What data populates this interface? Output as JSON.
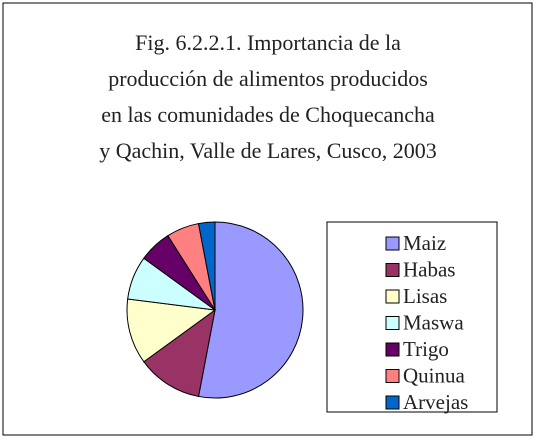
{
  "chart_data": {
    "type": "pie",
    "title": [
      "Fig. 6.2.2.1. Importancia de la",
      "producción de alimentos producidos",
      "en las comunidades de Choquecancha",
      "y Qachin, Valle de Lares, Cusco, 2003"
    ],
    "categories": [
      "Maiz",
      "Habas",
      "Lisas",
      "Maswa",
      "Trigo",
      "Quinua",
      "Arvejas"
    ],
    "values": [
      53,
      12,
      12,
      8,
      6,
      6,
      3
    ],
    "colors": [
      "#9999ff",
      "#993366",
      "#ffffcc",
      "#ccffff",
      "#660066",
      "#ff8080",
      "#0066cc"
    ],
    "legend": "right"
  }
}
